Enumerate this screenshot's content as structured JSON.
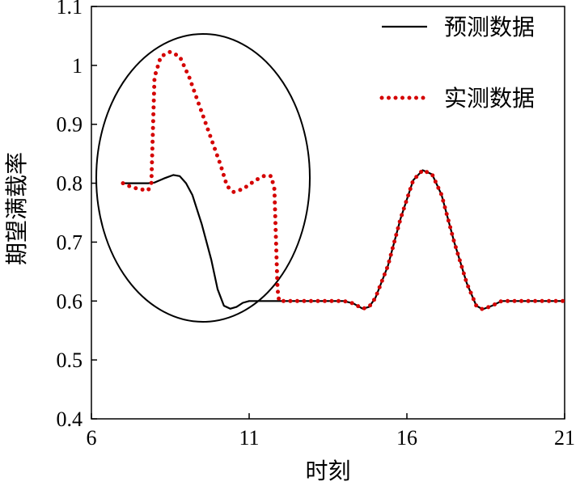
{
  "chart_data": {
    "type": "line",
    "xlabel": "时刻",
    "ylabel": "期望满载率",
    "xlim": [
      6,
      21
    ],
    "ylim": [
      0.4,
      1.1
    ],
    "xticks": [
      "6",
      "11",
      "16",
      "21"
    ],
    "yticks": [
      "0.4",
      "0.5",
      "0.6",
      "0.7",
      "0.8",
      "0.9",
      "1",
      "1.1"
    ],
    "grid": false,
    "legend_position": "top-right",
    "annotations": [
      "ellipse highlighting region x≈7–12"
    ],
    "series": [
      {
        "name": "预测数据",
        "style": "solid",
        "color": "#000000",
        "points": [
          [
            7.0,
            0.8
          ],
          [
            7.5,
            0.8
          ],
          [
            7.8,
            0.8
          ],
          [
            8.0,
            0.801
          ],
          [
            8.3,
            0.808
          ],
          [
            8.6,
            0.814
          ],
          [
            8.8,
            0.812
          ],
          [
            9.0,
            0.8
          ],
          [
            9.2,
            0.78
          ],
          [
            9.5,
            0.73
          ],
          [
            9.8,
            0.67
          ],
          [
            10.0,
            0.62
          ],
          [
            10.2,
            0.592
          ],
          [
            10.4,
            0.587
          ],
          [
            10.6,
            0.59
          ],
          [
            10.8,
            0.597
          ],
          [
            11.0,
            0.6
          ],
          [
            12.0,
            0.6
          ],
          [
            14.0,
            0.6
          ],
          [
            14.3,
            0.596
          ],
          [
            14.6,
            0.587
          ],
          [
            14.8,
            0.59
          ],
          [
            15.0,
            0.605
          ],
          [
            15.4,
            0.66
          ],
          [
            15.8,
            0.74
          ],
          [
            16.2,
            0.805
          ],
          [
            16.5,
            0.822
          ],
          [
            16.8,
            0.815
          ],
          [
            17.1,
            0.78
          ],
          [
            17.5,
            0.7
          ],
          [
            17.9,
            0.63
          ],
          [
            18.2,
            0.592
          ],
          [
            18.4,
            0.586
          ],
          [
            18.7,
            0.592
          ],
          [
            19.0,
            0.6
          ],
          [
            21.0,
            0.6
          ]
        ]
      },
      {
        "name": "实测数据",
        "style": "dotted",
        "color": "#d40000",
        "points": [
          [
            7.0,
            0.8
          ],
          [
            7.2,
            0.795
          ],
          [
            7.5,
            0.79
          ],
          [
            7.8,
            0.788
          ],
          [
            7.9,
            0.8
          ],
          [
            8.0,
            0.98
          ],
          [
            8.2,
            1.015
          ],
          [
            8.5,
            1.023
          ],
          [
            8.8,
            1.015
          ],
          [
            9.1,
            0.98
          ],
          [
            9.5,
            0.92
          ],
          [
            9.8,
            0.875
          ],
          [
            10.1,
            0.83
          ],
          [
            10.3,
            0.795
          ],
          [
            10.5,
            0.785
          ],
          [
            10.8,
            0.79
          ],
          [
            11.2,
            0.805
          ],
          [
            11.5,
            0.813
          ],
          [
            11.7,
            0.812
          ],
          [
            11.8,
            0.79
          ],
          [
            11.9,
            0.62
          ],
          [
            11.95,
            0.6
          ],
          [
            12.0,
            0.6
          ],
          [
            14.0,
            0.6
          ],
          [
            14.3,
            0.596
          ],
          [
            14.6,
            0.587
          ],
          [
            14.8,
            0.59
          ],
          [
            15.0,
            0.605
          ],
          [
            15.4,
            0.66
          ],
          [
            15.8,
            0.74
          ],
          [
            16.2,
            0.805
          ],
          [
            16.5,
            0.822
          ],
          [
            16.8,
            0.815
          ],
          [
            17.1,
            0.78
          ],
          [
            17.5,
            0.7
          ],
          [
            17.9,
            0.63
          ],
          [
            18.2,
            0.592
          ],
          [
            18.4,
            0.586
          ],
          [
            18.7,
            0.592
          ],
          [
            19.0,
            0.6
          ],
          [
            21.0,
            0.6
          ]
        ]
      }
    ]
  }
}
